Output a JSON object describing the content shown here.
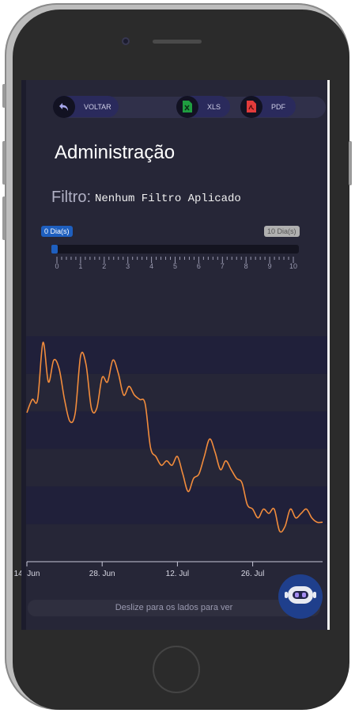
{
  "toolbar": {
    "back_label": "VOLTAR",
    "xls_label": "XLS",
    "pdf_label": "PDF",
    "back_icon": "back-arrow-icon",
    "xls_icon": "excel-file-icon",
    "pdf_icon": "pdf-file-icon"
  },
  "page": {
    "title": "Administração"
  },
  "filter": {
    "label": "Filtro:",
    "value": "Nenhum Filtro Aplicado"
  },
  "slider": {
    "min_label": "0 Dia(s)",
    "max_label": "10 Dia(s)",
    "min_value": 0,
    "max_value": 10,
    "selected_from": 0,
    "selected_to": 0,
    "tick_labels": [
      "0",
      "1",
      "2",
      "3",
      "4",
      "5",
      "6",
      "7",
      "8",
      "9",
      "10"
    ],
    "accent_color": "#1e5fbf"
  },
  "chart_data": {
    "type": "line",
    "x": [
      "2024-06-14",
      "2024-06-15",
      "2024-06-16",
      "2024-06-17",
      "2024-06-18",
      "2024-06-19",
      "2024-06-20",
      "2024-06-21",
      "2024-06-22",
      "2024-06-23",
      "2024-06-24",
      "2024-06-25",
      "2024-06-26",
      "2024-06-27",
      "2024-06-28",
      "2024-06-29",
      "2024-06-30",
      "2024-07-01",
      "2024-07-02",
      "2024-07-03",
      "2024-07-04",
      "2024-07-05",
      "2024-07-06",
      "2024-07-07",
      "2024-07-08",
      "2024-07-09",
      "2024-07-10",
      "2024-07-11",
      "2024-07-12",
      "2024-07-13",
      "2024-07-14",
      "2024-07-15",
      "2024-07-16",
      "2024-07-17",
      "2024-07-18",
      "2024-07-19",
      "2024-07-20",
      "2024-07-21",
      "2024-07-22",
      "2024-07-23",
      "2024-07-24",
      "2024-07-25",
      "2024-07-26",
      "2024-07-27",
      "2024-07-28",
      "2024-07-29",
      "2024-07-30",
      "2024-07-31",
      "2024-08-01",
      "2024-08-02",
      "2024-08-03",
      "2024-08-04",
      "2024-08-05",
      "2024-08-06",
      "2024-08-07",
      "2024-08-08"
    ],
    "series": [
      {
        "values": [
          44,
          47,
          47,
          60,
          51,
          56,
          54,
          47,
          42,
          44,
          57,
          55,
          45,
          45,
          52,
          51,
          56,
          53,
          48,
          50,
          48,
          47,
          46,
          36,
          34,
          32,
          33,
          32,
          34,
          30,
          26,
          29,
          30,
          34,
          38,
          35,
          31,
          33,
          31,
          29,
          28,
          23,
          22,
          20,
          22,
          21,
          22,
          17,
          18,
          22,
          20,
          21,
          22,
          20,
          19,
          19
        ],
        "color": "#f28c3c"
      }
    ],
    "xlabel": "",
    "ylabel": "",
    "x_tick_labels": [
      "14. Jun",
      "28. Jun",
      "12. Jul",
      "26. Jul"
    ],
    "x_tick_dates": [
      "2024-06-14",
      "2024-06-28",
      "2024-07-12",
      "2024-07-26"
    ],
    "ylim": [
      10,
      70
    ],
    "grid": "alternating horizontal bands",
    "legend": "none",
    "band_colors": [
      "#262637",
      "#20203a"
    ]
  },
  "footer": {
    "swipe_hint": "Deslize para os lados para ver",
    "bot_icon": "robot-assistant-icon"
  }
}
